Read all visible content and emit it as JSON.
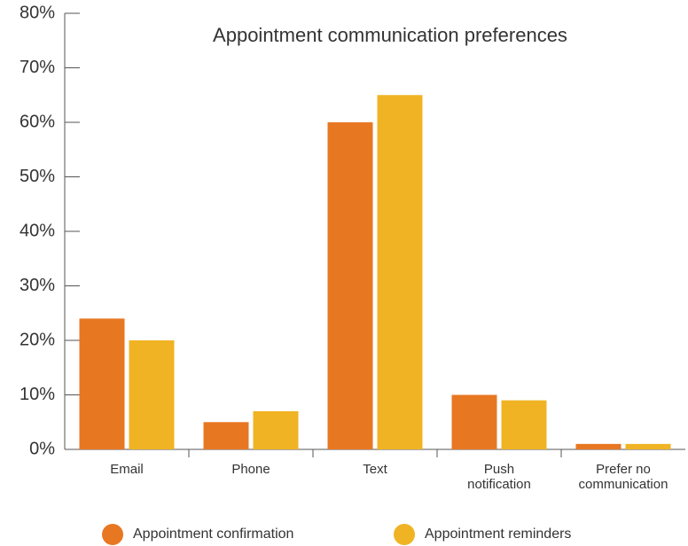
{
  "chart_data": {
    "type": "bar",
    "title": "Appointment communication preferences",
    "categories": [
      "Email",
      "Phone",
      "Text",
      "Push notification",
      "Prefer no communication"
    ],
    "series": [
      {
        "name": "Appointment confirmation",
        "color": "#e87722",
        "values": [
          24,
          5,
          60,
          10,
          1
        ]
      },
      {
        "name": "Appointment reminders",
        "color": "#f0b323",
        "values": [
          20,
          7,
          65,
          9,
          1
        ]
      }
    ],
    "ylim": [
      0,
      80
    ],
    "yticks": [
      {
        "value": 0,
        "label": "0%"
      },
      {
        "value": 10,
        "label": "10%"
      },
      {
        "value": 20,
        "label": "20%"
      },
      {
        "value": 30,
        "label": "30%"
      },
      {
        "value": 40,
        "label": "40%"
      },
      {
        "value": 50,
        "label": "50%"
      },
      {
        "value": 60,
        "label": "60%"
      },
      {
        "value": 70,
        "label": "70%"
      },
      {
        "value": 80,
        "label": "80%"
      }
    ],
    "legend": "bottom"
  }
}
